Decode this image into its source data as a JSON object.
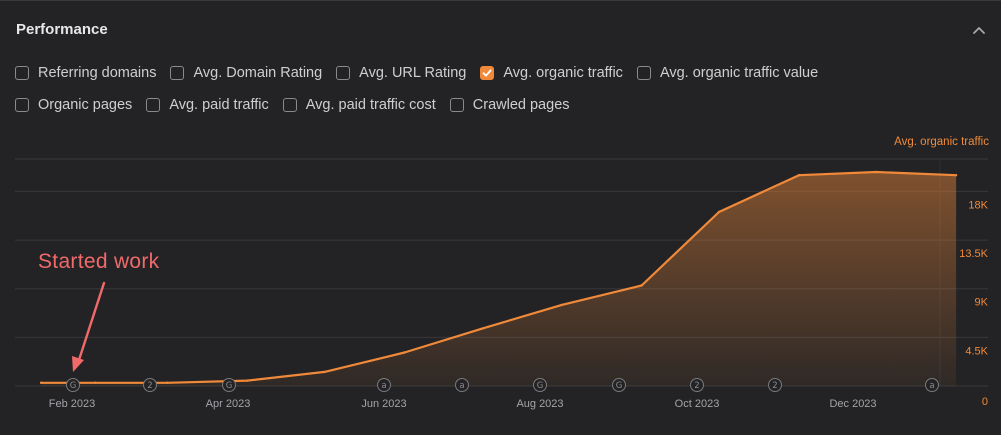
{
  "panel": {
    "title": "Performance"
  },
  "checkboxes": {
    "row1": [
      {
        "label": "Referring domains",
        "checked": false
      },
      {
        "label": "Avg. Domain Rating",
        "checked": false
      },
      {
        "label": "Avg. URL Rating",
        "checked": false
      },
      {
        "label": "Avg. organic traffic",
        "checked": true
      },
      {
        "label": "Avg. organic traffic value",
        "checked": false
      }
    ],
    "row2": [
      {
        "label": "Organic pages",
        "checked": false
      },
      {
        "label": "Avg. paid traffic",
        "checked": false
      },
      {
        "label": "Avg. paid traffic cost",
        "checked": false
      },
      {
        "label": "Crawled pages",
        "checked": false
      }
    ]
  },
  "annotation": {
    "text": "Started work"
  },
  "colors": {
    "accent": "#f08a3a",
    "annotation": "#f06a6a"
  },
  "chart_data": {
    "type": "area",
    "series": [
      {
        "name": "Avg. organic traffic",
        "x": [
          "2023-01-20",
          "2023-02-10",
          "2023-03-10",
          "2023-04-10",
          "2023-05-10",
          "2023-06-10",
          "2023-07-10",
          "2023-08-10",
          "2023-09-10",
          "2023-10-10",
          "2023-11-10",
          "2023-12-10",
          "2024-01-10"
        ],
        "y": [
          300,
          300,
          300,
          500,
          1300,
          3100,
          5300,
          7500,
          9300,
          16100,
          19500,
          19800,
          19500
        ]
      }
    ],
    "x_tick_labels": [
      "Feb 2023",
      "Apr 2023",
      "Jun 2023",
      "Aug 2023",
      "Oct 2023",
      "Dec 2023"
    ],
    "y_tick_labels": [
      "0",
      "4.5K",
      "9K",
      "13.5K",
      "18K"
    ],
    "ylim": [
      0,
      21000
    ],
    "grid": true,
    "legend": "top-right",
    "event_markers": [
      {
        "symbol": "G"
      },
      {
        "symbol": "2"
      },
      {
        "symbol": "G"
      },
      {
        "symbol": "a"
      },
      {
        "symbol": "a"
      },
      {
        "symbol": "G"
      },
      {
        "symbol": "G"
      },
      {
        "symbol": "2"
      },
      {
        "symbol": "2"
      },
      {
        "symbol": "a"
      }
    ]
  }
}
